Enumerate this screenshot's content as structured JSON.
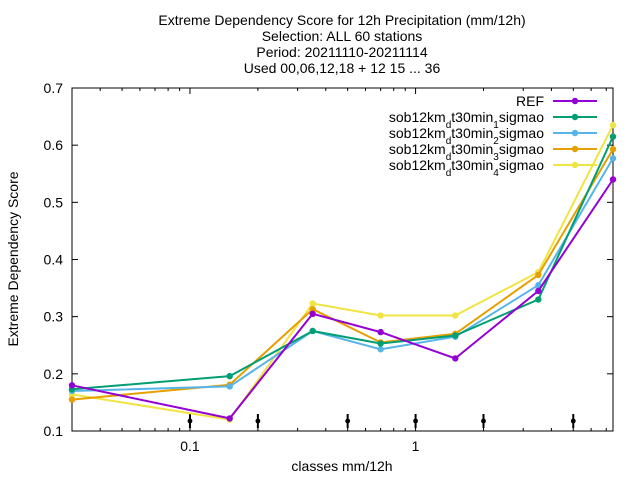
{
  "chart_data": {
    "type": "line",
    "title_lines": [
      "Extreme Dependency Score  for 12h Precipitation (mm/12h)",
      "Selection: ALL     60 stations",
      "Period: 20211110-20211114",
      "Used 00,06,12,18 + 12 15 ... 36"
    ],
    "xlabel": "classes mm/12h",
    "ylabel": "Extreme Dependency Score",
    "x_scale": "log",
    "xlim": [
      0.03,
      7.5
    ],
    "ylim": [
      0.1,
      0.7
    ],
    "x_ticks": [
      {
        "value": 0.1,
        "label": "0.1"
      },
      {
        "value": 1,
        "label": "1"
      }
    ],
    "y_ticks": [
      {
        "value": 0.1,
        "label": "0.1"
      },
      {
        "value": 0.2,
        "label": "0.2"
      },
      {
        "value": 0.3,
        "label": "0.3"
      },
      {
        "value": 0.4,
        "label": "0.4"
      },
      {
        "value": 0.5,
        "label": "0.5"
      },
      {
        "value": 0.6,
        "label": "0.6"
      },
      {
        "value": 0.7,
        "label": "0.7"
      }
    ],
    "class_markers": [
      0.1,
      0.2,
      0.5,
      1,
      2,
      5
    ],
    "grid": false,
    "legend_position": "top-right",
    "x": [
      0.03,
      0.15,
      0.35,
      0.7,
      1.5,
      3.5,
      7.5
    ],
    "series": [
      {
        "name": "REF",
        "label_parts": [
          [
            "REF",
            false
          ]
        ],
        "color": "#9400d3",
        "values": [
          0.18,
          0.122,
          0.305,
          0.273,
          0.227,
          0.345,
          0.54
        ]
      },
      {
        "name": "sob12km_dt30min_1sigmao",
        "label_parts": [
          [
            "sob12km",
            false
          ],
          [
            "d",
            true
          ],
          [
            "t30min",
            false
          ],
          [
            "1",
            true
          ],
          [
            "sigmao",
            false
          ]
        ],
        "color": "#009e73",
        "values": [
          0.173,
          0.196,
          0.275,
          0.253,
          0.267,
          0.33,
          0.615
        ]
      },
      {
        "name": "sob12km_dt30min_2sigmao",
        "label_parts": [
          [
            "sob12km",
            false
          ],
          [
            "d",
            true
          ],
          [
            "t30min",
            false
          ],
          [
            "2",
            true
          ],
          [
            "sigmao",
            false
          ]
        ],
        "color": "#56b4e9",
        "values": [
          0.17,
          0.178,
          0.275,
          0.243,
          0.265,
          0.355,
          0.577
        ]
      },
      {
        "name": "sob12km_dt30min_3sigmao",
        "label_parts": [
          [
            "sob12km",
            false
          ],
          [
            "d",
            true
          ],
          [
            "t30min",
            false
          ],
          [
            "3",
            true
          ],
          [
            "sigmao",
            false
          ]
        ],
        "color": "#e69f00",
        "values": [
          0.155,
          0.181,
          0.313,
          0.255,
          0.27,
          0.373,
          0.593
        ]
      },
      {
        "name": "sob12km_dt30min_4sigmao",
        "label_parts": [
          [
            "sob12km",
            false
          ],
          [
            "d",
            true
          ],
          [
            "t30min",
            false
          ],
          [
            "4",
            true
          ],
          [
            "sigmao",
            false
          ]
        ],
        "color": "#f0e442",
        "values": [
          0.164,
          0.12,
          0.323,
          0.302,
          0.302,
          0.378,
          0.635
        ]
      }
    ]
  }
}
